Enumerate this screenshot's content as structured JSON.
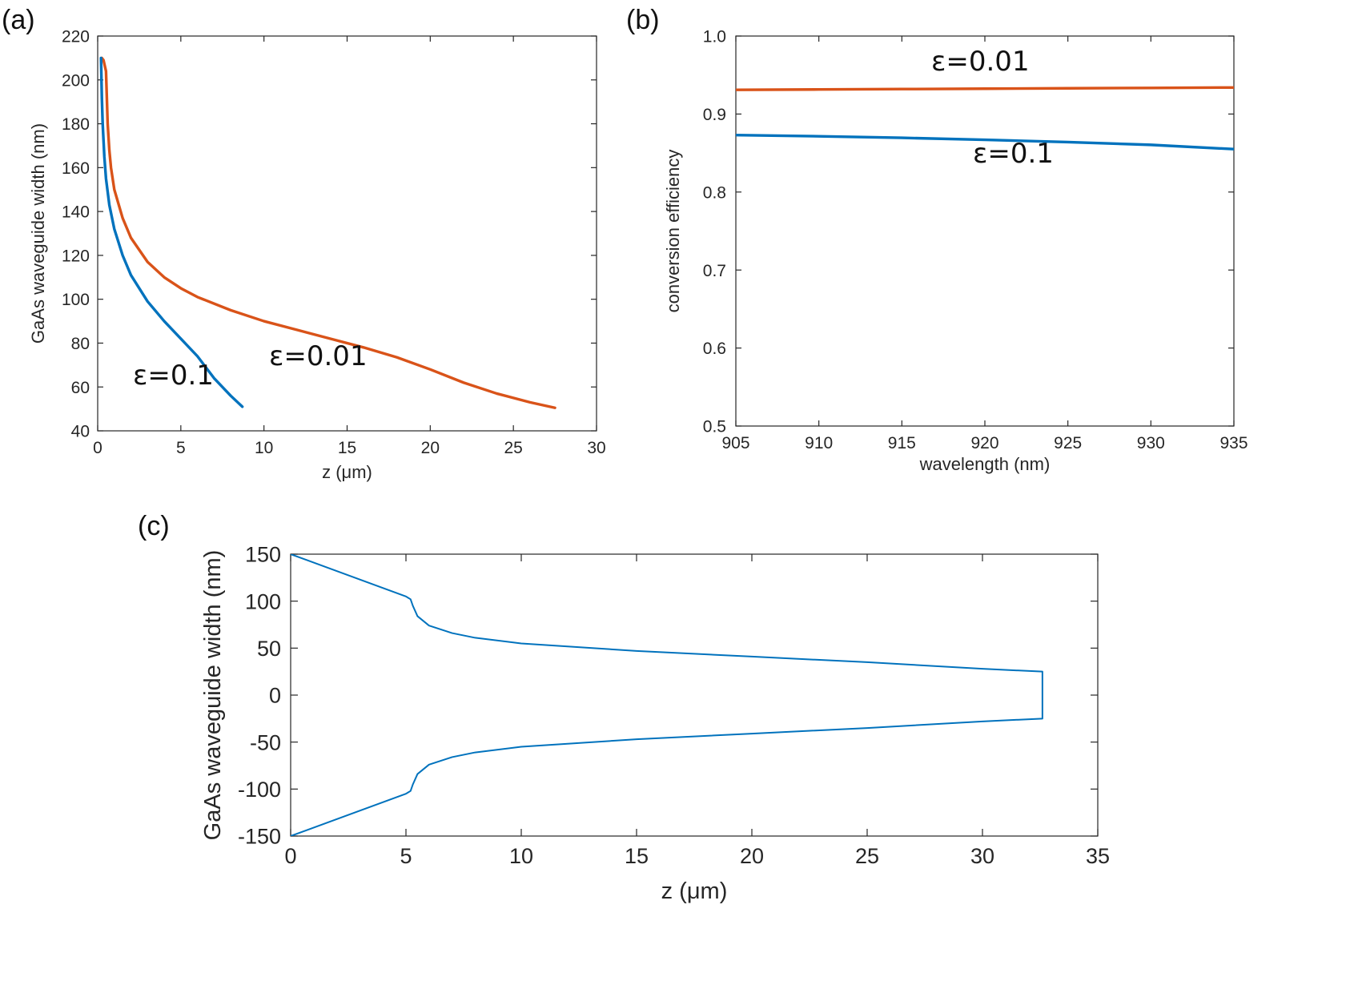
{
  "chart_data": [
    {
      "id": "a",
      "panel_label": "(a)",
      "type": "line",
      "title": "",
      "xlabel": "z (μm)",
      "ylabel": "GaAs waveguide width (nm)",
      "xlim": [
        0,
        30
      ],
      "ylim": [
        40,
        220
      ],
      "xticks": [
        0,
        5,
        10,
        15,
        20,
        25,
        30
      ],
      "yticks": [
        40,
        60,
        80,
        100,
        120,
        140,
        160,
        180,
        200,
        220
      ],
      "xtick_labels": [
        "0",
        "5",
        "10",
        "15",
        "20",
        "25",
        "30"
      ],
      "ytick_labels": [
        "40",
        "60",
        "80",
        "100",
        "120",
        "140",
        "160",
        "180",
        "200",
        "220"
      ],
      "grid": false,
      "series": [
        {
          "name": "ε=0.01",
          "label": "ε=0.01",
          "color": "#D95319",
          "x": [
            0.25,
            0.35,
            0.5,
            0.6,
            0.7,
            0.8,
            1.0,
            1.5,
            2.0,
            3.0,
            4.0,
            5.0,
            6.0,
            8.0,
            10.0,
            12.0,
            14.0,
            16.0,
            18.0,
            20.0,
            22.0,
            24.0,
            26.0,
            27.5
          ],
          "y": [
            210,
            209,
            204,
            180,
            168,
            160,
            150,
            137,
            128,
            117,
            110,
            105,
            101,
            95,
            90,
            86,
            82,
            78,
            73.5,
            68,
            62,
            57,
            53,
            50.5
          ]
        },
        {
          "name": "ε=0.1",
          "label": "ε=0.1",
          "color": "#0072BD",
          "x": [
            0.2,
            0.25,
            0.3,
            0.4,
            0.5,
            0.7,
            1.0,
            1.5,
            2.0,
            3.0,
            4.0,
            5.0,
            6.0,
            7.0,
            8.0,
            8.7
          ],
          "y": [
            210,
            192,
            180,
            165,
            155,
            143,
            132,
            120,
            111,
            99,
            90,
            82,
            74,
            64,
            56,
            51
          ]
        }
      ]
    },
    {
      "id": "b",
      "panel_label": "(b)",
      "type": "line",
      "title": "",
      "xlabel": "wavelength (nm)",
      "ylabel": "conversion efficiency",
      "xlim": [
        905,
        935
      ],
      "ylim": [
        0.5,
        1.0
      ],
      "xticks": [
        905,
        910,
        915,
        920,
        925,
        930,
        935
      ],
      "yticks": [
        0.5,
        0.6,
        0.7,
        0.8,
        0.9,
        1.0
      ],
      "xtick_labels": [
        "905",
        "910",
        "915",
        "920",
        "925",
        "930",
        "935"
      ],
      "ytick_labels": [
        "0.5",
        "0.6",
        "0.7",
        "0.8",
        "0.9",
        "1.0"
      ],
      "grid": false,
      "series": [
        {
          "name": "ε=0.01",
          "label": "ε=0.01",
          "color": "#D95319",
          "x": [
            905,
            910,
            915,
            920,
            925,
            930,
            935
          ],
          "y": [
            0.931,
            0.9315,
            0.932,
            0.9325,
            0.933,
            0.9335,
            0.934
          ]
        },
        {
          "name": "ε=0.1",
          "label": "ε=0.1",
          "color": "#0072BD",
          "x": [
            905,
            910,
            915,
            920,
            925,
            930,
            935
          ],
          "y": [
            0.873,
            0.8715,
            0.8695,
            0.867,
            0.864,
            0.8605,
            0.855
          ]
        }
      ]
    },
    {
      "id": "c",
      "panel_label": "(c)",
      "type": "line",
      "title": "",
      "xlabel": "z (μm)",
      "ylabel": "GaAs waveguide width (nm)",
      "xlim": [
        0,
        35
      ],
      "ylim": [
        -150,
        150
      ],
      "xticks": [
        0,
        5,
        10,
        15,
        20,
        25,
        30,
        35
      ],
      "yticks": [
        -150,
        -100,
        -50,
        0,
        50,
        100,
        150
      ],
      "xtick_labels": [
        "0",
        "5",
        "10",
        "15",
        "20",
        "25",
        "30",
        "35"
      ],
      "ytick_labels": [
        "-150",
        "-100",
        "-50",
        "0",
        "50",
        "100",
        "150"
      ],
      "grid": false,
      "series": [
        {
          "name": "waveguide outline",
          "color": "#0072BD",
          "x": [
            0,
            5.0,
            5.2,
            5.3,
            5.5,
            6.0,
            7.0,
            8.0,
            10.0,
            15.0,
            20.0,
            25.0,
            30.0,
            32.6,
            32.6,
            30.0,
            25.0,
            20.0,
            15.0,
            10.0,
            8.0,
            7.0,
            6.0,
            5.5,
            5.3,
            5.2,
            5.0,
            0
          ],
          "y": [
            150,
            105,
            102,
            95,
            84,
            74,
            66,
            61,
            55,
            47,
            41,
            35,
            28,
            25,
            -25,
            -28,
            -35,
            -41,
            -47,
            -55,
            -61,
            -66,
            -74,
            -84,
            -95,
            -102,
            -105,
            -150
          ]
        }
      ]
    }
  ]
}
